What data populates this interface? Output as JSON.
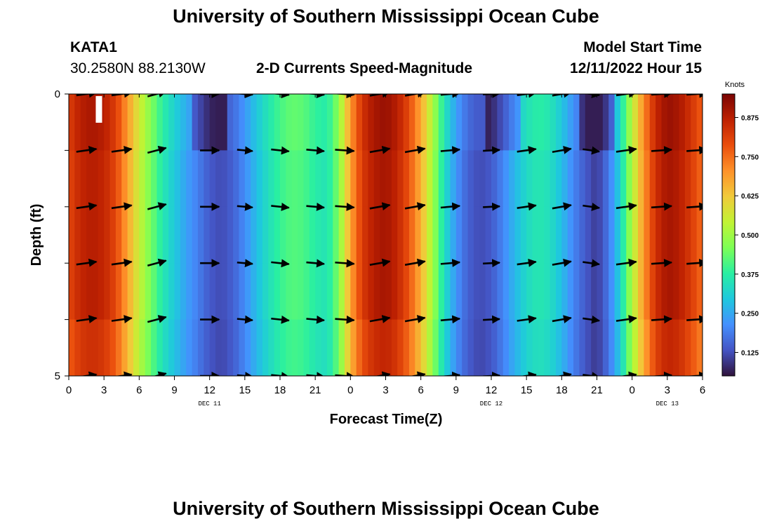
{
  "header": {
    "title": "University of Southern Mississippi Ocean Cube",
    "station": "KATA1",
    "coords": "30.2580N  88.2130W",
    "model_start_label": "Model Start Time",
    "model_start_value": "12/11/2022 Hour 15"
  },
  "footer": {
    "title": "University of Southern Mississippi Ocean Cube"
  },
  "chart_data": {
    "type": "heatmap",
    "title": "2-D Currents Speed-Magnitude",
    "xlabel": "Forecast Time(Z)",
    "ylabel": "Depth (ft)",
    "x_tick_labels": [
      "0",
      "3",
      "6",
      "9",
      "12",
      "15",
      "18",
      "21",
      "0",
      "3",
      "6",
      "9",
      "12",
      "15",
      "18",
      "21",
      "0",
      "3",
      "6"
    ],
    "x_date_labels": [
      {
        "label": "DEC 11",
        "at_hour": 12
      },
      {
        "label": "DEC 12",
        "at_hour": 36
      },
      {
        "label": "DEC 13",
        "at_hour": 51
      }
    ],
    "x_range_hours": [
      0,
      54
    ],
    "y_tick_labels": [
      {
        "label": "0",
        "depth": 0
      },
      {
        "label": "",
        "depth": 1
      },
      {
        "label": "",
        "depth": 2
      },
      {
        "label": "",
        "depth": 3
      },
      {
        "label": "",
        "depth": 4
      },
      {
        "label": "5",
        "depth": 5
      }
    ],
    "ylim": [
      0,
      5
    ],
    "colorbar": {
      "label": "Knots",
      "range": [
        0.05,
        0.95
      ],
      "ticks": [
        "0.875",
        "0.750",
        "0.625",
        "0.500",
        "0.375",
        "0.250",
        "0.125"
      ],
      "colors": [
        "#30123b",
        "#4454c4",
        "#4490fe",
        "#1fc8de",
        "#29efa2",
        "#7dff56",
        "#c1f334",
        "#f1ca3a",
        "#fe922a",
        "#ea4e0d",
        "#be2102",
        "#7a0403"
      ]
    },
    "speed_profile": {
      "hours": [
        0,
        1,
        2,
        3,
        4,
        5,
        6,
        7,
        8,
        9,
        10,
        11,
        12,
        13,
        14,
        15,
        16,
        17,
        18,
        19,
        20,
        21,
        22,
        23,
        24,
        25,
        26,
        27,
        28,
        29,
        30,
        31,
        32,
        33,
        34,
        35,
        36,
        37,
        38,
        39,
        40,
        41,
        42,
        43,
        44,
        45,
        46,
        47,
        48,
        49,
        50,
        51,
        52,
        53,
        54
      ],
      "knots": [
        0.8,
        0.86,
        0.88,
        0.86,
        0.8,
        0.68,
        0.55,
        0.45,
        0.36,
        0.3,
        0.24,
        0.19,
        0.14,
        0.12,
        0.15,
        0.21,
        0.28,
        0.34,
        0.39,
        0.42,
        0.41,
        0.37,
        0.35,
        0.46,
        0.68,
        0.82,
        0.88,
        0.9,
        0.86,
        0.78,
        0.66,
        0.5,
        0.34,
        0.22,
        0.15,
        0.12,
        0.14,
        0.2,
        0.27,
        0.33,
        0.36,
        0.34,
        0.28,
        0.2,
        0.14,
        0.1,
        0.18,
        0.32,
        0.52,
        0.7,
        0.84,
        0.9,
        0.88,
        0.82,
        0.75
      ]
    },
    "surface_low_hours": [
      12,
      37,
      45
    ],
    "arrows": {
      "depths": [
        0,
        1,
        2,
        3,
        4,
        5
      ],
      "hours": [
        1.5,
        4.5,
        7.5,
        12,
        15,
        18,
        21,
        23.5,
        26.5,
        29.5,
        32.5,
        36,
        39,
        42,
        44.5,
        47.5,
        50.5,
        53.5
      ],
      "angle_deg": [
        -8,
        -8,
        -15,
        0,
        5,
        6,
        5,
        4,
        -10,
        -10,
        -5,
        -3,
        -8,
        -10,
        8,
        -8,
        -4,
        -4
      ],
      "length_rel": [
        0.85,
        0.85,
        0.8,
        0.8,
        0.65,
        0.75,
        0.75,
        0.8,
        0.85,
        0.85,
        0.8,
        0.7,
        0.8,
        0.8,
        0.7,
        0.85,
        0.85,
        0.85
      ]
    }
  }
}
